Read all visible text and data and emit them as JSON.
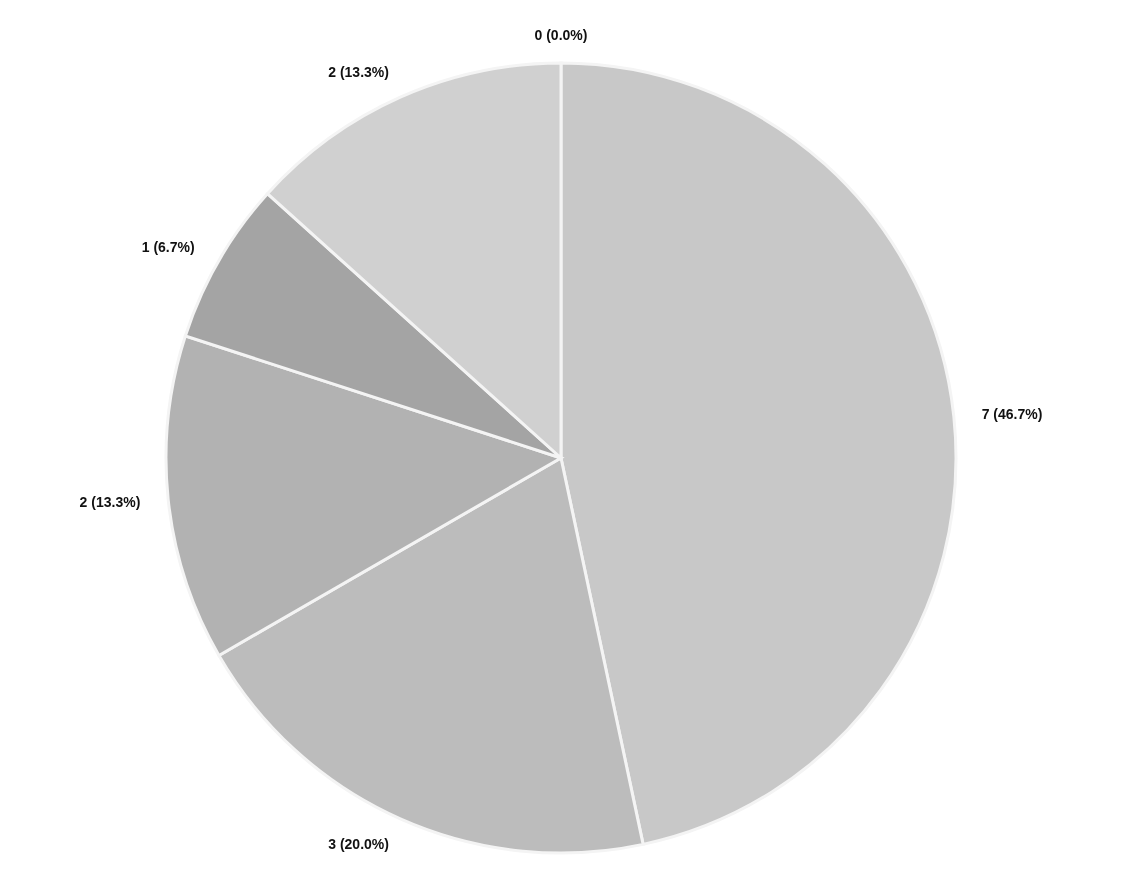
{
  "chart_data": {
    "type": "pie",
    "categories": [
      null,
      null,
      null,
      null,
      null,
      null
    ],
    "values": [
      7,
      3,
      2,
      1,
      2,
      0
    ],
    "colors": [
      "#c8c8c8",
      "#bcbcbc",
      "#b2b2b2",
      "#a4a4a4",
      "#d0d0d0",
      "#d8d8d8"
    ],
    "value_labels": [
      "7 (46.7%)",
      "3 (20.0%)",
      "2 (13.3%)",
      "1 (6.7%)",
      "2 (13.3%)",
      "0 (0.0%)"
    ],
    "legend": false
  }
}
